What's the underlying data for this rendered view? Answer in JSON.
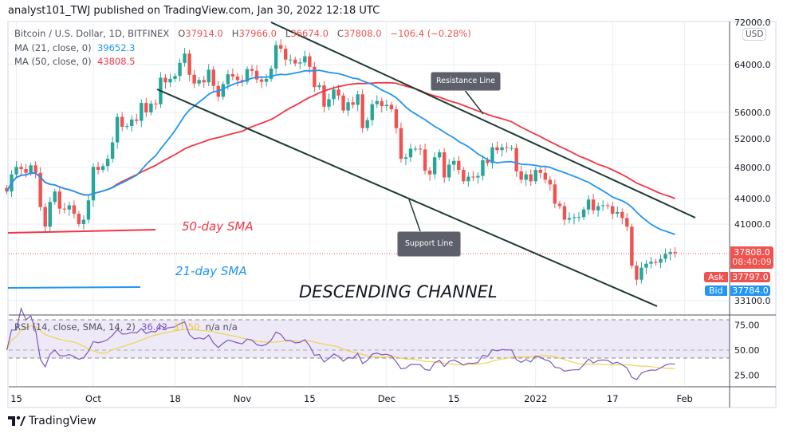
{
  "published": "analyst101_TWJ published on TradingView.com, Jan 30, 2022 12:18 UTC",
  "legend": {
    "symbol": "Bitcoin / U.S. Dollar, 1D, BITFINEX",
    "o_label": "O",
    "open": "37914.0",
    "h_label": "H",
    "high": "37966.0",
    "l_label": "L",
    "low": "36674.0",
    "c_label": "C",
    "close": "37808.0",
    "change": "−106.4 (−0.28%)",
    "ma21_label": "MA (21, close, 0)",
    "ma21_value": "39652.3",
    "ma50_label": "MA (50, close, 0)",
    "ma50_value": "43808.5",
    "rsi_label": "RSI (14, close, SMA, 14, 2)",
    "rsi_value": "36.42",
    "rsi_sma_value": "31.50",
    "na1": "n/a",
    "na2": "n/a"
  },
  "price_axis": {
    "currency": "USD",
    "ticks": [
      "72000.0",
      "64000.0",
      "56000.0",
      "52000.0",
      "48000.0",
      "44000.0",
      "41000.0",
      "33100.0"
    ],
    "scale": "log"
  },
  "rsi_axis": {
    "ticks": [
      "75.00",
      "50.00",
      "25.00"
    ]
  },
  "time_axis": {
    "ticks": [
      [
        "2021-09-15",
        "15"
      ],
      [
        "2021-10-01",
        "Oct"
      ],
      [
        "2021-10-18",
        "18"
      ],
      [
        "2021-11-01",
        "Nov"
      ],
      [
        "2021-11-15",
        "15"
      ],
      [
        "2021-12-01",
        "Dec"
      ],
      [
        "2021-12-15",
        "15"
      ],
      [
        "2022-01-01",
        "2022"
      ],
      [
        "2022-01-17",
        "17"
      ],
      [
        "2022-02-01",
        "Feb"
      ]
    ]
  },
  "price_labels": {
    "last": "37808.0",
    "countdown": "08:40:09",
    "ask_label": "Ask",
    "ask": "37797.0",
    "bid_label": "Bid",
    "bid": "37784.0"
  },
  "annotations": {
    "resistance": "Resistance Line",
    "support": "Support Line",
    "sma50": "50-day SMA",
    "sma21": "21-day SMA",
    "channel": "DESCENDING CHANNEL"
  },
  "brand": "TradingView",
  "colors": {
    "up": "#26a69a",
    "down": "#ef5350",
    "ma21": "#2196f3",
    "ma50": "#f23645",
    "rsi": "#7e57c2",
    "rsi_sma": "#f0d44a",
    "trendline": "#1e3b32"
  },
  "chart_data": {
    "type": "candlestick",
    "symbol": "BTCUSD",
    "y_scale": "log",
    "candles_close": [
      [
        "2021-09-13",
        44900
      ],
      [
        "2021-09-14",
        47100
      ],
      [
        "2021-09-15",
        48100
      ],
      [
        "2021-09-16",
        47800
      ],
      [
        "2021-09-17",
        47300
      ],
      [
        "2021-09-18",
        48300
      ],
      [
        "2021-09-19",
        47300
      ],
      [
        "2021-09-20",
        43000
      ],
      [
        "2021-09-21",
        40700
      ],
      [
        "2021-09-22",
        43600
      ],
      [
        "2021-09-23",
        44900
      ],
      [
        "2021-09-24",
        42800
      ],
      [
        "2021-09-25",
        42700
      ],
      [
        "2021-09-26",
        43200
      ],
      [
        "2021-09-27",
        42200
      ],
      [
        "2021-09-28",
        41000
      ],
      [
        "2021-09-29",
        41500
      ],
      [
        "2021-09-30",
        43800
      ],
      [
        "2021-10-01",
        48100
      ],
      [
        "2021-10-02",
        47700
      ],
      [
        "2021-10-03",
        48200
      ],
      [
        "2021-10-04",
        49200
      ],
      [
        "2021-10-05",
        51500
      ],
      [
        "2021-10-06",
        55300
      ],
      [
        "2021-10-07",
        53800
      ],
      [
        "2021-10-08",
        53900
      ],
      [
        "2021-10-09",
        54900
      ],
      [
        "2021-10-10",
        54700
      ],
      [
        "2021-10-11",
        57500
      ],
      [
        "2021-10-12",
        56000
      ],
      [
        "2021-10-13",
        57400
      ],
      [
        "2021-10-14",
        57300
      ],
      [
        "2021-10-15",
        61700
      ],
      [
        "2021-10-16",
        60900
      ],
      [
        "2021-10-17",
        61500
      ],
      [
        "2021-10-18",
        62000
      ],
      [
        "2021-10-19",
        64300
      ],
      [
        "2021-10-20",
        66000
      ],
      [
        "2021-10-21",
        62200
      ],
      [
        "2021-10-22",
        60700
      ],
      [
        "2021-10-23",
        61300
      ],
      [
        "2021-10-24",
        60900
      ],
      [
        "2021-10-25",
        63100
      ],
      [
        "2021-10-26",
        60300
      ],
      [
        "2021-10-27",
        58500
      ],
      [
        "2021-10-28",
        60600
      ],
      [
        "2021-10-29",
        62300
      ],
      [
        "2021-10-30",
        61900
      ],
      [
        "2021-10-31",
        61300
      ],
      [
        "2021-11-01",
        61000
      ],
      [
        "2021-11-02",
        63200
      ],
      [
        "2021-11-03",
        62900
      ],
      [
        "2021-11-04",
        61400
      ],
      [
        "2021-11-05",
        61000
      ],
      [
        "2021-11-06",
        61500
      ],
      [
        "2021-11-07",
        63300
      ],
      [
        "2021-11-08",
        67600
      ],
      [
        "2021-11-09",
        66900
      ],
      [
        "2021-11-10",
        64900
      ],
      [
        "2021-11-11",
        64900
      ],
      [
        "2021-11-12",
        64200
      ],
      [
        "2021-11-13",
        64400
      ],
      [
        "2021-11-14",
        65500
      ],
      [
        "2021-11-15",
        63600
      ],
      [
        "2021-11-16",
        60100
      ],
      [
        "2021-11-17",
        60400
      ],
      [
        "2021-11-18",
        56900
      ],
      [
        "2021-11-19",
        58100
      ],
      [
        "2021-11-20",
        59700
      ],
      [
        "2021-11-21",
        58700
      ],
      [
        "2021-11-22",
        56300
      ],
      [
        "2021-11-23",
        57600
      ],
      [
        "2021-11-24",
        57200
      ],
      [
        "2021-11-25",
        58900
      ],
      [
        "2021-11-26",
        53600
      ],
      [
        "2021-11-27",
        54800
      ],
      [
        "2021-11-28",
        57300
      ],
      [
        "2021-11-29",
        57800
      ],
      [
        "2021-11-30",
        57000
      ],
      [
        "2021-12-01",
        57200
      ],
      [
        "2021-12-02",
        56500
      ],
      [
        "2021-12-03",
        53600
      ],
      [
        "2021-12-04",
        49200
      ],
      [
        "2021-12-05",
        49400
      ],
      [
        "2021-12-06",
        50600
      ],
      [
        "2021-12-07",
        50600
      ],
      [
        "2021-12-08",
        50500
      ],
      [
        "2021-12-09",
        47600
      ],
      [
        "2021-12-10",
        47100
      ],
      [
        "2021-12-11",
        49400
      ],
      [
        "2021-12-12",
        50100
      ],
      [
        "2021-12-13",
        46700
      ],
      [
        "2021-12-14",
        48400
      ],
      [
        "2021-12-15",
        48900
      ],
      [
        "2021-12-16",
        47700
      ],
      [
        "2021-12-17",
        46200
      ],
      [
        "2021-12-18",
        46800
      ],
      [
        "2021-12-19",
        46700
      ],
      [
        "2021-12-20",
        46900
      ],
      [
        "2021-12-21",
        49000
      ],
      [
        "2021-12-22",
        48600
      ],
      [
        "2021-12-23",
        50800
      ],
      [
        "2021-12-24",
        50400
      ],
      [
        "2021-12-25",
        50800
      ],
      [
        "2021-12-26",
        50700
      ],
      [
        "2021-12-27",
        50700
      ],
      [
        "2021-12-28",
        47500
      ],
      [
        "2021-12-29",
        46400
      ],
      [
        "2021-12-30",
        47100
      ],
      [
        "2021-12-31",
        46200
      ],
      [
        "2022-01-01",
        47700
      ],
      [
        "2022-01-02",
        47300
      ],
      [
        "2022-01-03",
        46400
      ],
      [
        "2022-01-04",
        45800
      ],
      [
        "2022-01-05",
        43400
      ],
      [
        "2022-01-06",
        43100
      ],
      [
        "2022-01-07",
        41500
      ],
      [
        "2022-01-08",
        41700
      ],
      [
        "2022-01-09",
        41800
      ],
      [
        "2022-01-10",
        41800
      ],
      [
        "2022-01-11",
        42700
      ],
      [
        "2022-01-12",
        43900
      ],
      [
        "2022-01-13",
        42600
      ],
      [
        "2022-01-14",
        43100
      ],
      [
        "2022-01-15",
        43200
      ],
      [
        "2022-01-16",
        43100
      ],
      [
        "2022-01-17",
        42200
      ],
      [
        "2022-01-18",
        42400
      ],
      [
        "2022-01-19",
        41700
      ],
      [
        "2022-01-20",
        40700
      ],
      [
        "2022-01-21",
        36500
      ],
      [
        "2022-01-22",
        35100
      ],
      [
        "2022-01-23",
        36300
      ],
      [
        "2022-01-24",
        36700
      ],
      [
        "2022-01-25",
        36900
      ],
      [
        "2022-01-26",
        36800
      ],
      [
        "2022-01-27",
        37200
      ],
      [
        "2022-01-28",
        37700
      ],
      [
        "2022-01-29",
        37914
      ],
      [
        "2022-01-30",
        37808
      ]
    ],
    "indicators": [
      "MA 21",
      "MA 50",
      "RSI 14 with SMA 14"
    ],
    "rsi_levels": [
      70,
      50,
      30
    ]
  }
}
